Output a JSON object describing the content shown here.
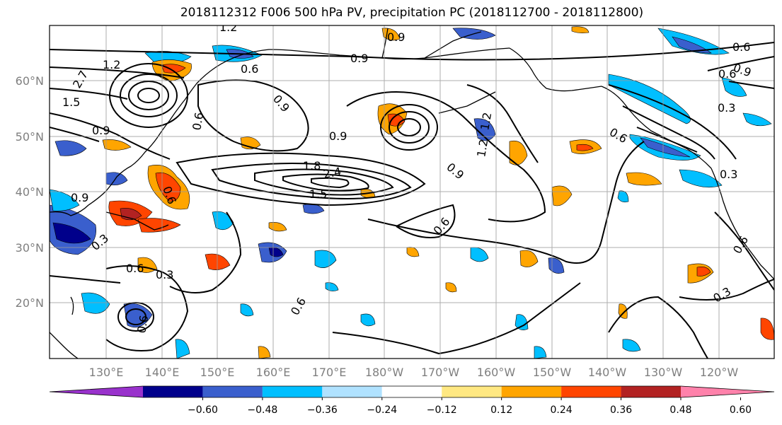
{
  "title": "2018112312 F006 500 hPa PV, precipitation PC (2018112700 - 2018112800)",
  "lat_labels": [
    "60°N",
    "50°N",
    "40°N",
    "30°N",
    "20°N"
  ],
  "lon_labels": [
    "130°E",
    "140°E",
    "150°E",
    "160°E",
    "170°E",
    "180°W",
    "170°W",
    "160°W",
    "150°W",
    "140°W",
    "130°W",
    "120°W"
  ],
  "colorbar": {
    "ticks": [
      "−0.60",
      "−0.48",
      "−0.36",
      "−0.24",
      "−0.12",
      "0.12",
      "0.24",
      "0.36",
      "0.48",
      "0.60"
    ],
    "colors": [
      "#9932cc",
      "#00008b",
      "#3a5fcd",
      "#00bfff",
      "#b0e2ff",
      "#ffffff",
      "#ffe882",
      "#ffa500",
      "#ff4500",
      "#b22222",
      "#ff82ab"
    ]
  },
  "contour_labels": [
    "1.2",
    "1.2",
    "1.5",
    "2.7",
    "0.6",
    "0.6",
    "0.9",
    "0.9",
    "0.9",
    "0.6",
    "0.9",
    "1.8",
    "2.4",
    "1.5",
    "0.9",
    "1.2",
    "0.9",
    "0.6",
    "0.9",
    "0.6",
    "0.6",
    "0.3",
    "0.6",
    "0.9",
    "0.3",
    "0.3",
    "0.3",
    "0.6",
    "1.2",
    "0.6",
    "0.3",
    "0.6",
    "0.6"
  ]
}
